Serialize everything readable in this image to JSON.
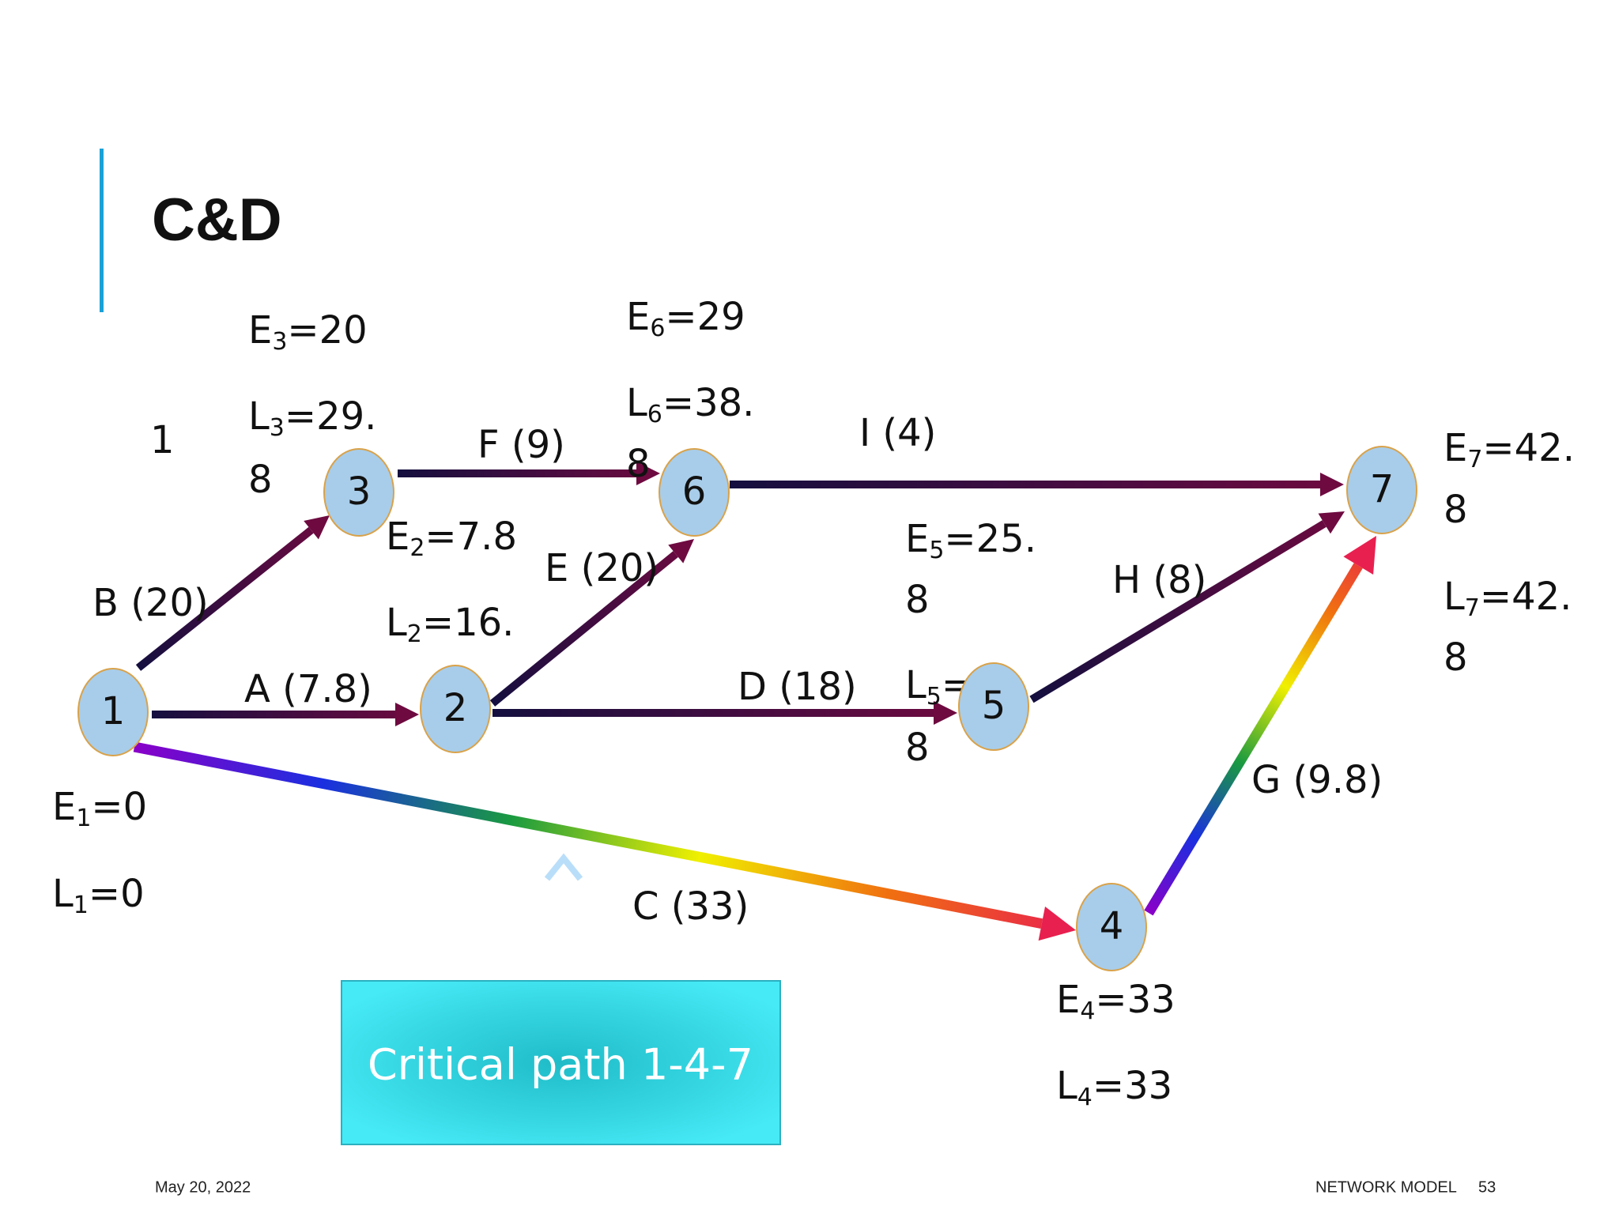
{
  "title": "C&D",
  "nodes": [
    {
      "label": "1"
    },
    {
      "label": "2"
    },
    {
      "label": "3"
    },
    {
      "label": "4"
    },
    {
      "label": "5"
    },
    {
      "label": "6"
    },
    {
      "label": "7"
    }
  ],
  "edges": [
    {
      "label": "A (7.8)"
    },
    {
      "label": "B (20)"
    },
    {
      "label": "C (33)"
    },
    {
      "label": "D (18)"
    },
    {
      "label": "E (20)"
    },
    {
      "label": "F (9)"
    },
    {
      "label": "G (9.8)"
    },
    {
      "label": "H (8)"
    },
    {
      "label": "I (4)"
    }
  ],
  "annotations": [
    {
      "main": "E",
      "sub": "3",
      "rest": "=20"
    },
    {
      "main": "L",
      "sub": "3",
      "rest": "=29."
    },
    {
      "text": "8"
    },
    {
      "text": "1"
    },
    {
      "main": "E",
      "sub": "6",
      "rest": "=29"
    },
    {
      "main": "L",
      "sub": "6",
      "rest": "=38."
    },
    {
      "text": "8"
    },
    {
      "main": "E",
      "sub": "2",
      "rest": "=7.8"
    },
    {
      "main": "L",
      "sub": "2",
      "rest": "=16."
    },
    {
      "main": "E",
      "sub": "5",
      "rest": "=25."
    },
    {
      "text": "8"
    },
    {
      "main": "L",
      "sub": "5",
      "rest": "="
    },
    {
      "text": "8"
    },
    {
      "main": "E",
      "sub": "7",
      "rest": "=42."
    },
    {
      "text": "8"
    },
    {
      "main": "L",
      "sub": "7",
      "rest": "=42."
    },
    {
      "text": "8"
    },
    {
      "main": "E",
      "sub": "1",
      "rest": "=0"
    },
    {
      "main": "L",
      "sub": "1",
      "rest": "=0"
    },
    {
      "main": "E",
      "sub": "4",
      "rest": "=33"
    },
    {
      "main": "L",
      "sub": "4",
      "rest": "=33"
    }
  ],
  "callout": "Critical path 1-4-7",
  "footer": {
    "date": "May 20, 2022",
    "section": "NETWORK MODEL",
    "page": "53"
  }
}
